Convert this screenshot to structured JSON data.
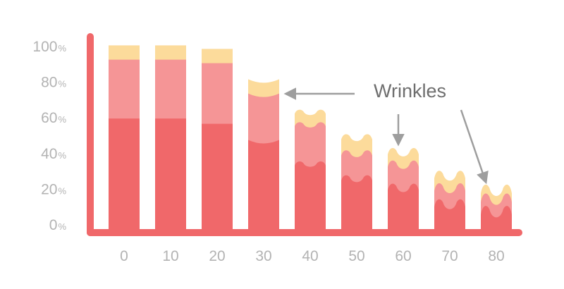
{
  "chart_data": {
    "type": "bar",
    "stacked": true,
    "categories": [
      "0",
      "10",
      "20",
      "30",
      "40",
      "50",
      "60",
      "70",
      "80"
    ],
    "y_ticks": [
      {
        "num": "0",
        "unit": "%"
      },
      {
        "num": "20",
        "unit": "%"
      },
      {
        "num": "40",
        "unit": "%"
      },
      {
        "num": "60",
        "unit": "%"
      },
      {
        "num": "80",
        "unit": "%"
      },
      {
        "num": "100",
        "unit": "%"
      }
    ],
    "ylim": [
      0,
      100
    ],
    "grid": false,
    "wavy_tops_from_category": "40",
    "layers": [
      {
        "values": [
          64,
          64,
          61,
          52,
          39,
          31,
          26,
          17,
          13
        ],
        "color": "#f0686a"
      },
      {
        "values": [
          97,
          97,
          95,
          78,
          61,
          45,
          39,
          26,
          20
        ],
        "color": "#f59596"
      },
      {
        "values": [
          105,
          105,
          103,
          86,
          68,
          54,
          46,
          33,
          25
        ],
        "color": "#fcdb9b"
      }
    ],
    "annotation": {
      "text": "Wrinkles",
      "arrow_targets": [
        "30",
        "60",
        "80"
      ]
    },
    "axis_color": "#f0686a"
  }
}
